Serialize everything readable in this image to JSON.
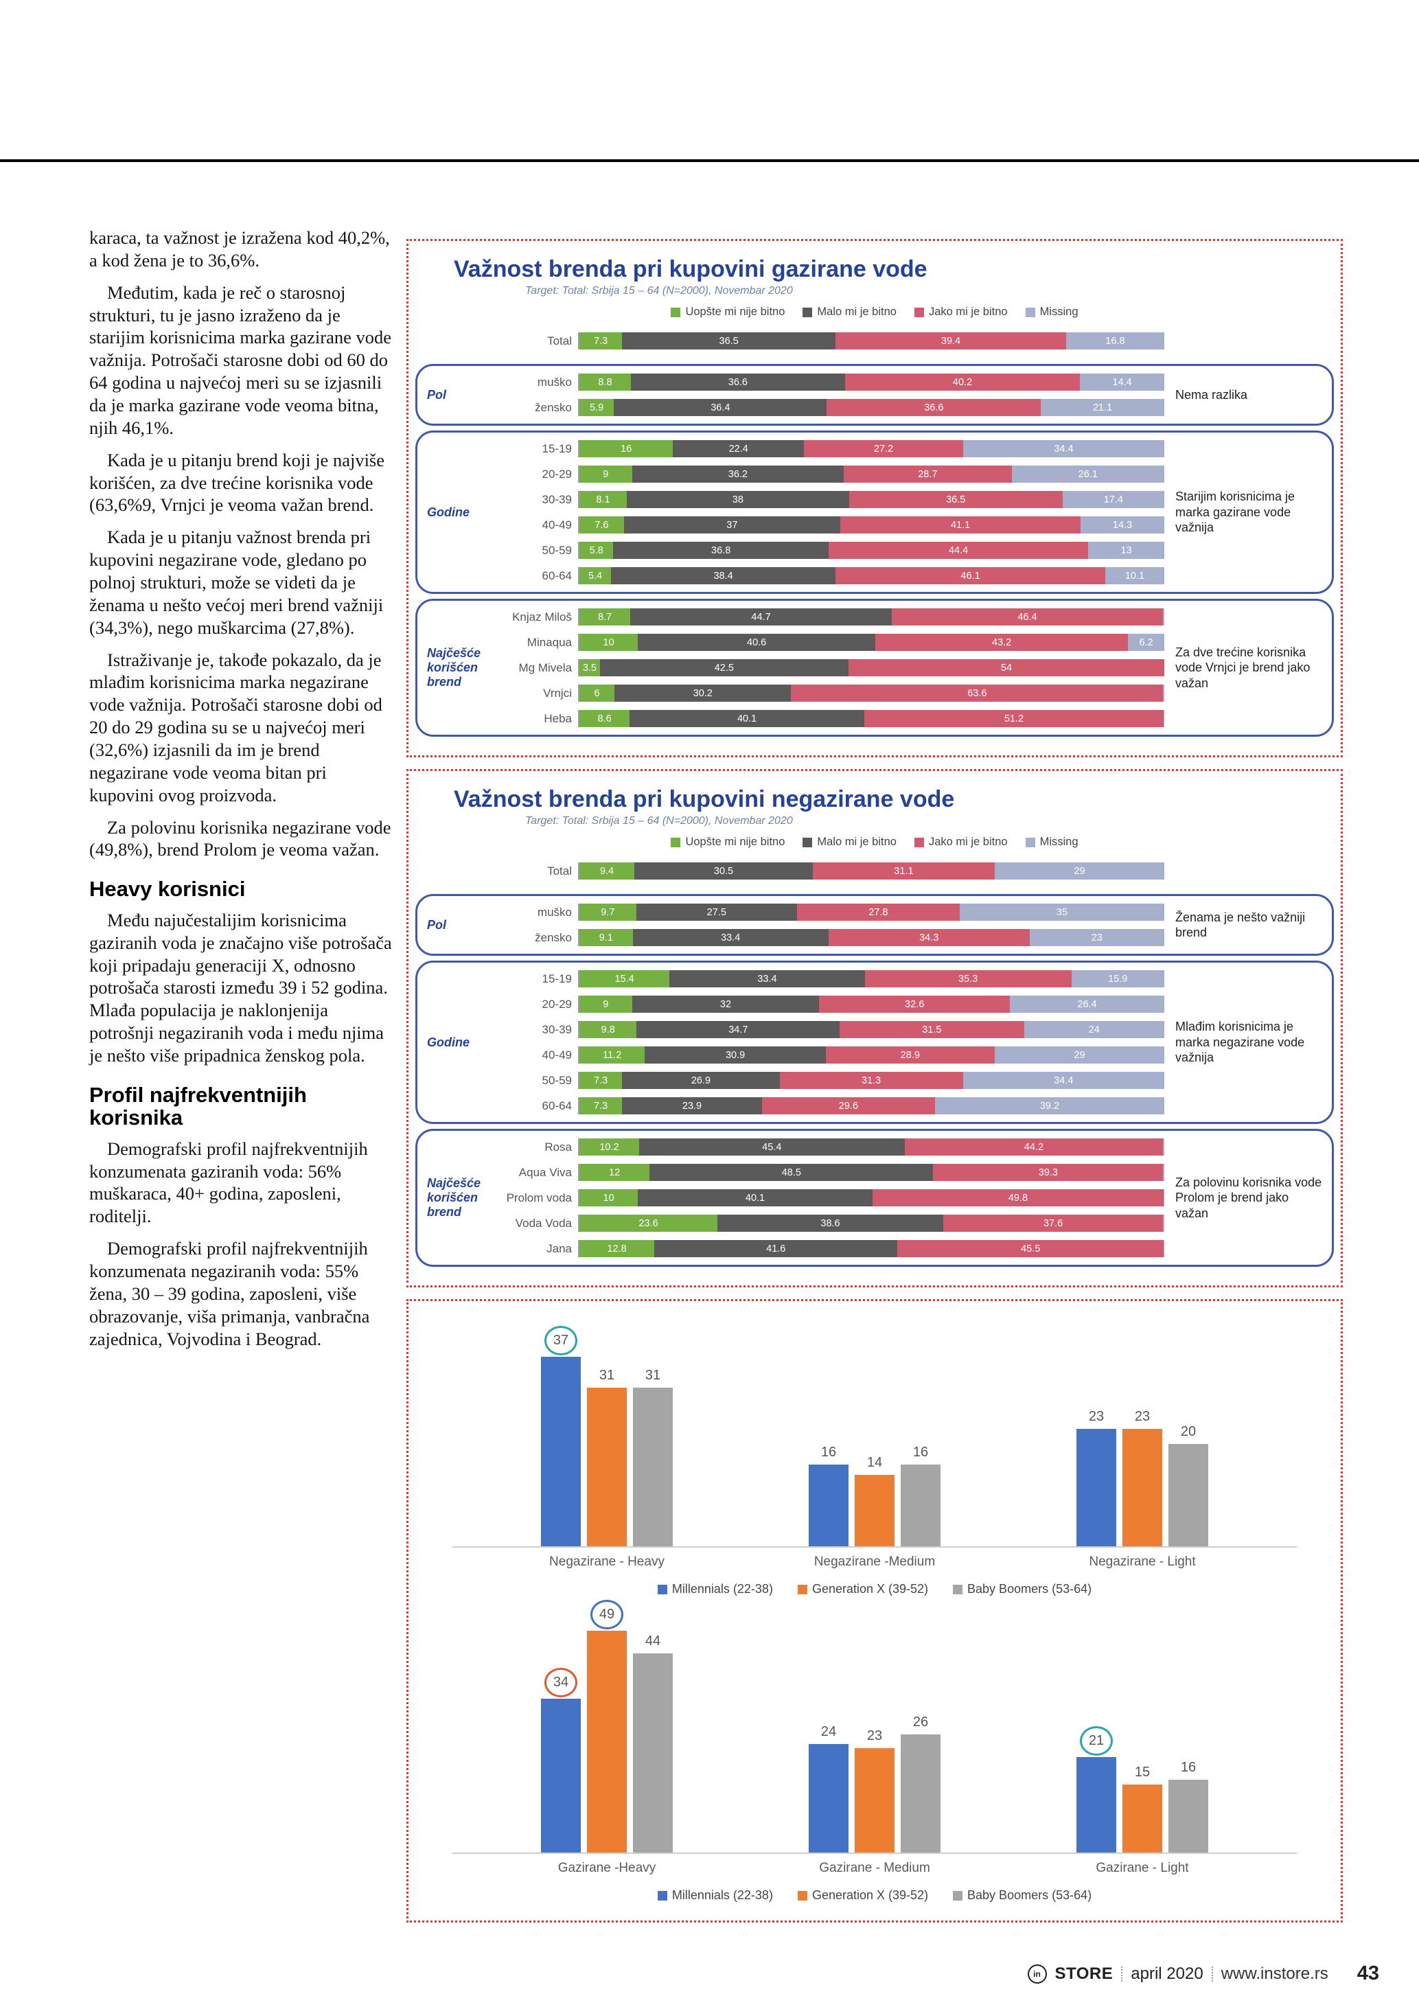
{
  "article": {
    "blocks": [
      {
        "type": "p",
        "text": "karaca, ta važnost je izražena kod 40,2%, a kod žena je to 36,6%."
      },
      {
        "type": "p",
        "text": "Međutim, kada je reč o starosnoj strukturi, tu je jasno izraženo da je starijim korisnicima marka gazirane vode važnija. Potrošači starosne dobi od 60 do 64 godina u najvećoj meri su se izjasnili da je marka gazirane vode veoma bitna, njih 46,1%."
      },
      {
        "type": "p",
        "text": "Kada je u pitanju brend koji je najviše korišćen, za dve trećine korisnika vode (63,6%9, Vrnjci je veoma važan brend."
      },
      {
        "type": "p",
        "text": "Kada je u pitanju važnost brenda pri kupovini negazirane vode, gledano po polnoj strukturi, može se videti da je ženama u nešto većoj meri brend važniji (34,3%), nego muškarcima (27,8%)."
      },
      {
        "type": "p",
        "text": "Istraživanje je, takođe pokazalo, da je mlađim korisnicima marka negazirane vode važnija. Potrošači starosne dobi od 20 do 29 godina su se u najvećoj meri (32,6%) izjasnili da im je brend negazirane vode veoma bitan pri kupovini ovog proizvoda."
      },
      {
        "type": "p",
        "text": "Za polovinu korisnika negazirane vode (49,8%), brend Prolom je veoma važan."
      },
      {
        "type": "h2",
        "text": "Heavy korisnici"
      },
      {
        "type": "p",
        "text": "Među najučestalijim korisnicima gaziranih voda je značajno više potrošača koji pripadaju generaciji X, odnosno potrošača starosti između 39 i 52 godina. Mlađa populacija je naklonjenija potrošnji negaziranih voda i među njima je nešto više pripadnica ženskog pola."
      },
      {
        "type": "h2",
        "text": "Profil najfrekventnijih korisnika"
      },
      {
        "type": "p",
        "text": "Demografski profil najfrekventnijih konzumenata gaziranih voda: 56% muškaraca, 40+ godina, zaposleni, roditelji."
      },
      {
        "type": "p",
        "text": "Demografski profil najfrekventnijih konzumenata negaziranih voda: 55% žena, 30 – 39 godina, zaposleni, više obrazovanje, viša primanja, vanbračna zajednica, Vojvodina i Beograd."
      }
    ]
  },
  "footer": {
    "logo_letters": "in",
    "brand": "STORE",
    "date": "april 2020",
    "site": "www.instore.rs",
    "page_number": "43"
  },
  "chart_data": [
    {
      "type": "stacked-bar-horizontal",
      "title": "Važnost brenda pri kupovini gazirane vode",
      "subtitle": "Target: Total: Srbija 15 – 64 (N=2000), Novembar 2020",
      "legend": [
        {
          "label": "Uopšte mi nije bitno",
          "color": "#76b043"
        },
        {
          "label": "Malo mi je bitno",
          "color": "#5a5a5a"
        },
        {
          "label": "Jako mi je bitno",
          "color": "#d05a6e"
        },
        {
          "label": "Missing",
          "color": "#a6b0cc"
        }
      ],
      "label_threshold": 3,
      "total_row": {
        "label": "Total",
        "values": [
          7.3,
          36.5,
          39.4,
          16.8
        ]
      },
      "groups": [
        {
          "label": "Pol",
          "annotation": "Nema razlika",
          "rows": [
            {
              "label": "muško",
              "values": [
                8.8,
                36.6,
                40.2,
                14.4
              ]
            },
            {
              "label": "žensko",
              "values": [
                5.9,
                36.4,
                36.6,
                21.1
              ]
            }
          ]
        },
        {
          "label": "Godine",
          "annotation": "Starijim korisnicima je marka gazirane vode važnija",
          "rows": [
            {
              "label": "15-19",
              "values": [
                16,
                22.4,
                27.2,
                34.4
              ]
            },
            {
              "label": "20-29",
              "values": [
                9,
                36.2,
                28.7,
                26.1
              ]
            },
            {
              "label": "30-39",
              "values": [
                8.1,
                38,
                36.5,
                17.4
              ]
            },
            {
              "label": "40-49",
              "values": [
                7.6,
                37,
                41.1,
                14.3
              ]
            },
            {
              "label": "50-59",
              "values": [
                5.8,
                36.8,
                44.4,
                13
              ]
            },
            {
              "label": "60-64",
              "values": [
                5.4,
                38.4,
                46.1,
                10.1
              ]
            }
          ]
        },
        {
          "label": "Najčešće korišćen brend",
          "annotation": "Za dve trećine korisnika vode Vrnjci je brend jako važan",
          "rows": [
            {
              "label": "Knjaz Miloš",
              "values": [
                8.7,
                44.7,
                46.4,
                0.2
              ]
            },
            {
              "label": "Minaqua",
              "values": [
                10,
                40.6,
                43.2,
                6.2
              ]
            },
            {
              "label": "Mg Mivela",
              "values": [
                3.5,
                42.5,
                54,
                0
              ]
            },
            {
              "label": "Vrnjci",
              "values": [
                6,
                30.2,
                63.6,
                0.2
              ]
            },
            {
              "label": "Heba",
              "values": [
                8.6,
                40.1,
                51.2,
                0.1
              ]
            }
          ]
        }
      ]
    },
    {
      "type": "stacked-bar-horizontal",
      "title": "Važnost brenda pri kupovini negazirane vode",
      "subtitle": "Target: Total: Srbija 15 – 64 (N=2000), Novembar 2020",
      "legend": [
        {
          "label": "Uopšte mi nije bitno",
          "color": "#76b043"
        },
        {
          "label": "Malo mi je bitno",
          "color": "#5a5a5a"
        },
        {
          "label": "Jako mi je bitno",
          "color": "#d05a6e"
        },
        {
          "label": "Missing",
          "color": "#a6b0cc"
        }
      ],
      "label_threshold": 3,
      "total_row": {
        "label": "Total",
        "values": [
          9.4,
          30.5,
          31.1,
          29
        ]
      },
      "groups": [
        {
          "label": "Pol",
          "annotation": "Ženama je nešto važniji brend",
          "rows": [
            {
              "label": "muško",
              "values": [
                9.7,
                27.5,
                27.8,
                35
              ]
            },
            {
              "label": "žensko",
              "values": [
                9.1,
                33.4,
                34.3,
                23
              ]
            }
          ]
        },
        {
          "label": "Godine",
          "annotation": "Mlađim korisnicima je marka negazirane vode važnija",
          "rows": [
            {
              "label": "15-19",
              "values": [
                15.4,
                33.4,
                35.3,
                15.9
              ]
            },
            {
              "label": "20-29",
              "values": [
                9,
                32,
                32.6,
                26.4
              ]
            },
            {
              "label": "30-39",
              "values": [
                9.8,
                34.7,
                31.5,
                24
              ]
            },
            {
              "label": "40-49",
              "values": [
                11.2,
                30.9,
                28.9,
                29
              ]
            },
            {
              "label": "50-59",
              "values": [
                7.3,
                26.9,
                31.3,
                34.4
              ]
            },
            {
              "label": "60-64",
              "values": [
                7.3,
                23.9,
                29.6,
                39.2
              ]
            }
          ]
        },
        {
          "label": "Najčešće korišćen brend",
          "annotation": "Za polovinu korisnika vode Prolom je brend jako važan",
          "rows": [
            {
              "label": "Rosa",
              "values": [
                10.2,
                45.4,
                44.2,
                0.2
              ]
            },
            {
              "label": "Aqua Viva",
              "values": [
                12,
                48.5,
                39.3,
                0.2
              ]
            },
            {
              "label": "Prolom voda",
              "values": [
                10,
                40.1,
                49.8,
                0.1
              ]
            },
            {
              "label": "Voda Voda",
              "values": [
                23.6,
                38.6,
                37.6,
                0.2
              ]
            },
            {
              "label": "Jana",
              "values": [
                12.8,
                41.6,
                45.5,
                0.1
              ]
            }
          ]
        }
      ]
    },
    {
      "type": "bar",
      "categories": [
        "Negazirane - Heavy",
        "Negazirane -Medium",
        "Negazirane - Light"
      ],
      "series": [
        {
          "name": "Millennials (22-38)",
          "color": "#4472c4",
          "values": [
            37,
            16,
            23
          ]
        },
        {
          "name": "Generation X (39-52)",
          "color": "#ed7d31",
          "values": [
            31,
            14,
            23
          ]
        },
        {
          "name": "Baby Boomers (53-64)",
          "color": "#a5a5a5",
          "values": [
            31,
            16,
            20
          ]
        }
      ],
      "ylim": [
        0,
        42
      ],
      "grid": false,
      "legend_position": "bottom",
      "highlights": [
        {
          "category": 0,
          "series": 0,
          "color": "#2aa8a8"
        }
      ]
    },
    {
      "type": "bar",
      "categories": [
        "Gazirane -Heavy",
        "Gazirane - Medium",
        "Gazirane - Light"
      ],
      "series": [
        {
          "name": "Millennials (22-38)",
          "color": "#4472c4",
          "values": [
            34,
            24,
            21
          ]
        },
        {
          "name": "Generation X (39-52)",
          "color": "#ed7d31",
          "values": [
            49,
            23,
            15
          ]
        },
        {
          "name": "Baby Boomers (53-64)",
          "color": "#a5a5a5",
          "values": [
            44,
            26,
            16
          ]
        }
      ],
      "ylim": [
        0,
        52
      ],
      "grid": false,
      "legend_position": "bottom",
      "highlights": [
        {
          "category": 0,
          "series": 0,
          "color": "#e25b2e"
        },
        {
          "category": 0,
          "series": 1,
          "color": "#4472c4"
        },
        {
          "category": 2,
          "series": 0,
          "color": "#2aa8a8"
        }
      ]
    }
  ]
}
